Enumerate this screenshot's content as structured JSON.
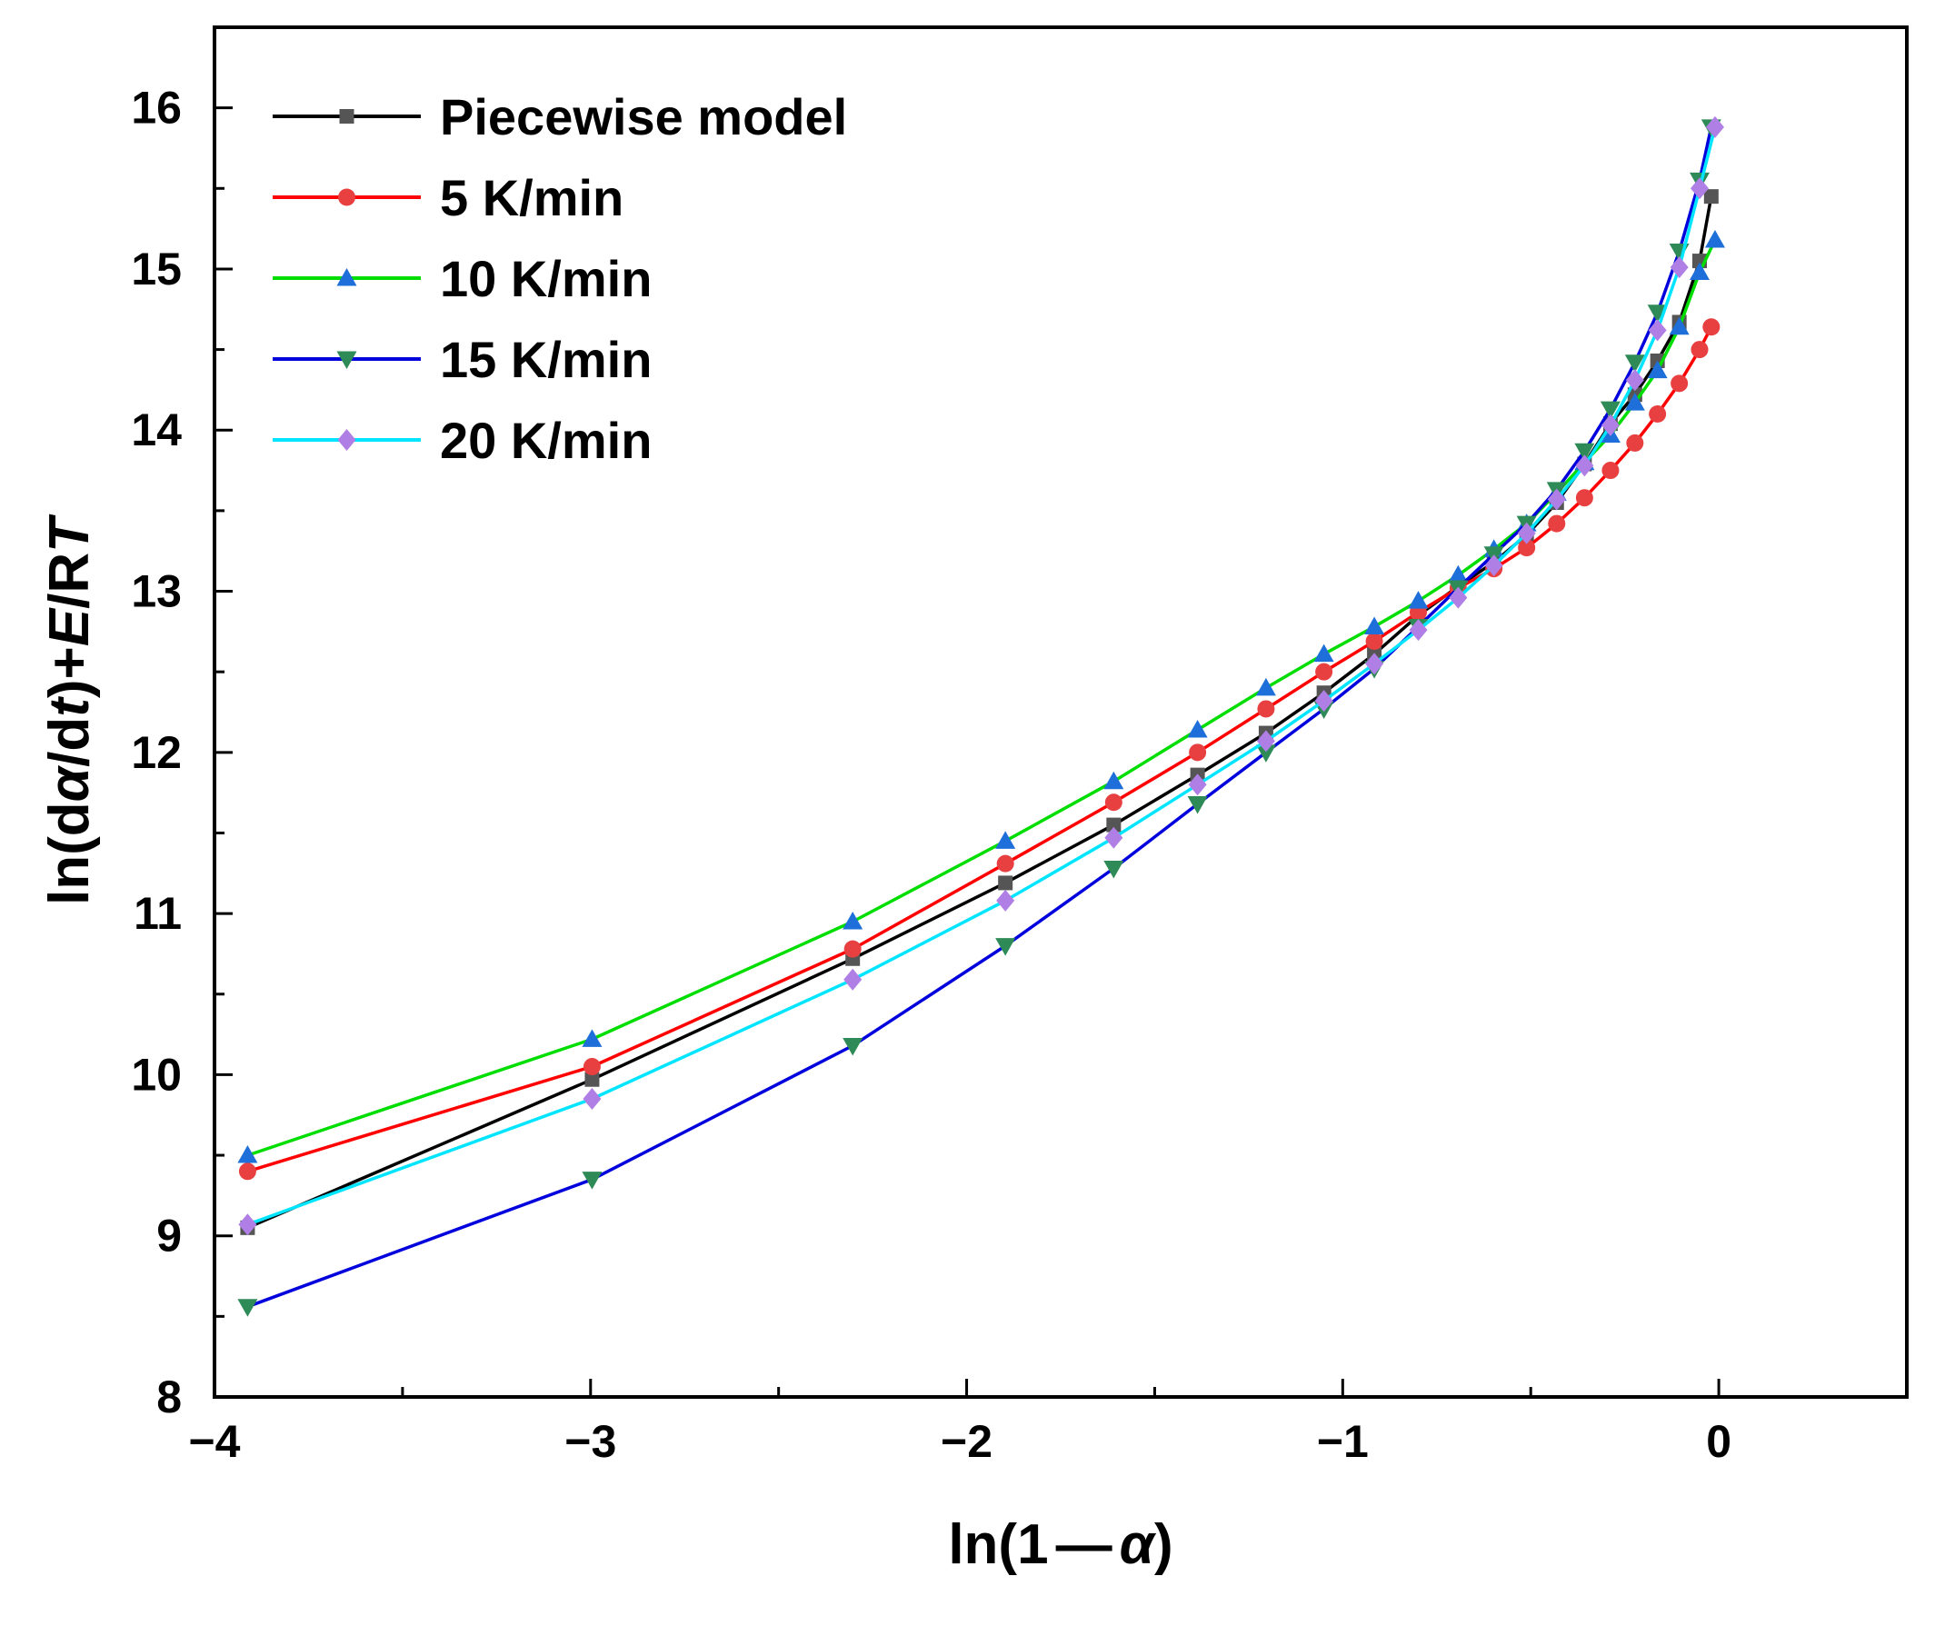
{
  "chart_data": {
    "type": "line",
    "title": "",
    "xlabel": {
      "prefix": "ln(1",
      "dash": "—",
      "var": "α",
      "suffix": ")"
    },
    "ylabel": {
      "p1": "ln(d",
      "p2": "α",
      "p3": "/d",
      "p4": "t",
      "p5": ")+",
      "p6": "E",
      "p7": "/R",
      "p8": "T"
    },
    "xlim": [
      -4,
      0.5
    ],
    "ylim": [
      8,
      16.5
    ],
    "xticks": [
      -4,
      -3,
      -2,
      -1,
      0
    ],
    "xtick_labels": [
      "−4",
      "−3",
      "−2",
      "−1",
      "0"
    ],
    "xminor": [
      -3.5,
      -2.5,
      -1.5,
      -0.5
    ],
    "yticks": [
      8,
      9,
      10,
      11,
      12,
      13,
      14,
      15,
      16
    ],
    "ytick_labels": [
      "8",
      "9",
      "10",
      "11",
      "12",
      "13",
      "14",
      "15",
      "16"
    ],
    "yminor": [
      8.5,
      9.5,
      10.5,
      11.5,
      12.5,
      13.5,
      14.5,
      15.5
    ],
    "legend_position": "top-left",
    "series": [
      {
        "name": "Piecewise model",
        "line_color": "#000000",
        "marker_color": "#555555",
        "marker": "square",
        "x": [
          -3.912,
          -2.996,
          -2.303,
          -1.897,
          -1.609,
          -1.386,
          -1.204,
          -1.05,
          -0.916,
          -0.799,
          -0.693,
          -0.598,
          -0.511,
          -0.431,
          -0.357,
          -0.288,
          -0.223,
          -0.163,
          -0.105,
          -0.051,
          -0.02
        ],
        "y": [
          9.05,
          9.97,
          10.72,
          11.19,
          11.55,
          11.86,
          12.12,
          12.37,
          12.61,
          12.85,
          13.03,
          13.18,
          13.35,
          13.55,
          13.79,
          14.04,
          14.22,
          14.43,
          14.67,
          15.05,
          15.45
        ]
      },
      {
        "name": "5 K/min",
        "line_color": "#ff0000",
        "marker_color": "#e84040",
        "marker": "circle",
        "x": [
          -3.912,
          -2.996,
          -2.303,
          -1.897,
          -1.609,
          -1.386,
          -1.204,
          -1.05,
          -0.916,
          -0.799,
          -0.693,
          -0.598,
          -0.511,
          -0.431,
          -0.357,
          -0.288,
          -0.223,
          -0.163,
          -0.105,
          -0.051,
          -0.02
        ],
        "y": [
          9.4,
          10.05,
          10.78,
          11.31,
          11.69,
          12.0,
          12.27,
          12.5,
          12.69,
          12.87,
          13.02,
          13.14,
          13.27,
          13.42,
          13.58,
          13.75,
          13.92,
          14.1,
          14.29,
          14.5,
          14.64
        ]
      },
      {
        "name": "10 K/min",
        "line_color": "#00dd00",
        "marker_color": "#1e6fd9",
        "marker": "triangle-up",
        "x": [
          -3.912,
          -2.996,
          -2.303,
          -1.897,
          -1.609,
          -1.386,
          -1.204,
          -1.05,
          -0.916,
          -0.799,
          -0.693,
          -0.598,
          -0.511,
          -0.431,
          -0.357,
          -0.288,
          -0.223,
          -0.163,
          -0.105,
          -0.051,
          -0.01
        ],
        "y": [
          9.5,
          10.22,
          10.95,
          11.45,
          11.82,
          12.14,
          12.4,
          12.61,
          12.78,
          12.94,
          13.1,
          13.26,
          13.42,
          13.61,
          13.8,
          13.97,
          14.17,
          14.37,
          14.64,
          14.98,
          15.18
        ]
      },
      {
        "name": "15 K/min",
        "line_color": "#0000dd",
        "marker_color": "#2e8b57",
        "marker": "triangle-down",
        "x": [
          -3.912,
          -2.996,
          -2.303,
          -1.897,
          -1.609,
          -1.386,
          -1.204,
          -1.05,
          -0.916,
          -0.799,
          -0.693,
          -0.598,
          -0.511,
          -0.431,
          -0.357,
          -0.288,
          -0.223,
          -0.163,
          -0.105,
          -0.051,
          -0.02
        ],
        "y": [
          8.56,
          9.35,
          10.18,
          10.8,
          11.28,
          11.68,
          12.0,
          12.27,
          12.52,
          12.78,
          13.02,
          13.23,
          13.42,
          13.63,
          13.87,
          14.13,
          14.42,
          14.73,
          15.11,
          15.55,
          15.88
        ]
      },
      {
        "name": "20 K/min",
        "line_color": "#00e5ff",
        "marker_color": "#b07fe6",
        "marker": "diamond",
        "x": [
          -3.912,
          -2.996,
          -2.303,
          -1.897,
          -1.609,
          -1.386,
          -1.204,
          -1.05,
          -0.916,
          -0.799,
          -0.693,
          -0.598,
          -0.511,
          -0.431,
          -0.357,
          -0.288,
          -0.223,
          -0.163,
          -0.105,
          -0.051,
          -0.01
        ],
        "y": [
          9.07,
          9.85,
          10.59,
          11.08,
          11.47,
          11.8,
          12.07,
          12.32,
          12.55,
          12.76,
          12.96,
          13.16,
          13.36,
          13.57,
          13.78,
          14.03,
          14.31,
          14.62,
          15.01,
          15.5,
          15.88
        ]
      }
    ]
  }
}
